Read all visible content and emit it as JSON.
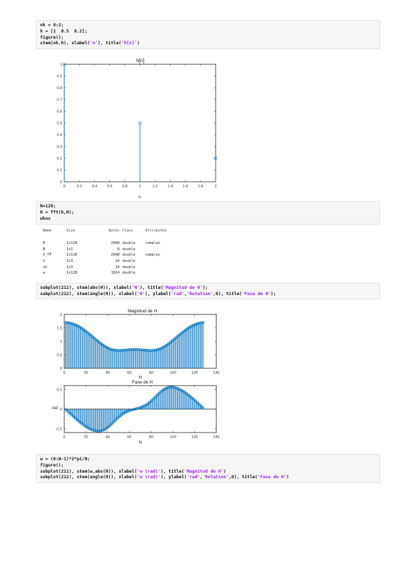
{
  "code_block_1": {
    "lines": [
      [
        {
          "t": "nh = 0:2;"
        }
      ],
      [
        {
          "t": "h = [1  0.5  0.2];"
        }
      ],
      [
        {
          "t": "figure();"
        }
      ],
      [
        {
          "t": "stem(nh,h), xlabel("
        },
        {
          "t": "'n'",
          "s": 1
        },
        {
          "t": "), title("
        },
        {
          "t": "'h[n]'",
          "s": 1
        },
        {
          "t": ")"
        }
      ]
    ]
  },
  "code_block_2": {
    "lines": [
      [
        {
          "t": "N=128;"
        }
      ],
      [
        {
          "t": "H = fft(h,N);"
        }
      ],
      [
        {
          "t": "whos"
        }
      ]
    ]
  },
  "code_block_3": {
    "lines": [
      [
        {
          "t": "subplot(211), stem(abs(H)), xlabel("
        },
        {
          "t": "'N'",
          "s": 1
        },
        {
          "t": "), title("
        },
        {
          "t": "'Magnitud de H'",
          "s": 1
        },
        {
          "t": ");"
        }
      ],
      [
        {
          "t": "subplot(212), stem(angle(H)), xlabel("
        },
        {
          "t": "'N'",
          "s": 1
        },
        {
          "t": "), ylabel("
        },
        {
          "t": "'rad'",
          "s": 1
        },
        {
          "t": ","
        },
        {
          "t": "'Rotation'",
          "s": 1
        },
        {
          "t": ",0), title("
        },
        {
          "t": "'Fase de H'",
          "s": 1
        },
        {
          "t": ");"
        }
      ]
    ]
  },
  "code_block_4": {
    "lines": [
      [
        {
          "t": "w = (0:N-1)*2*pi/N;"
        }
      ],
      [
        {
          "t": "figure();"
        }
      ],
      [
        {
          "t": "subplot(211), stem(w,abs(H)), xlabel("
        },
        {
          "t": "'w (rad)'",
          "s": 1
        },
        {
          "t": "), title("
        },
        {
          "t": "'Magnitud de H'",
          "s": 1
        },
        {
          "t": ")"
        }
      ],
      [
        {
          "t": "subplot(212), stem(angle(H)), xlabel("
        },
        {
          "t": "'w (rad)'",
          "s": 1
        },
        {
          "t": "), ylabel("
        },
        {
          "t": "'rad'",
          "s": 1
        },
        {
          "t": ","
        },
        {
          "t": "'Rotation'",
          "s": 1
        },
        {
          "t": ",0), title("
        },
        {
          "t": "'Fase de H'",
          "s": 1
        },
        {
          "t": ")"
        }
      ]
    ]
  },
  "whos": {
    "headers": [
      "Name",
      "Size",
      "Bytes",
      "Class",
      "Attributes"
    ],
    "rows": [
      [
        "H",
        "1x128",
        "2048",
        "double",
        "complex"
      ],
      [
        "N",
        "1x1",
        "8",
        "double",
        ""
      ],
      [
        "X_TF",
        "1x128",
        "2048",
        "double",
        "complex"
      ],
      [
        "h",
        "1x3",
        "24",
        "double",
        ""
      ],
      [
        "nh",
        "1x3",
        "24",
        "double",
        ""
      ],
      [
        "w",
        "1x128",
        "1024",
        "double",
        ""
      ]
    ]
  },
  "colors": {
    "stem": "#0072bd",
    "string": "#a020f0",
    "code_bg": "#f6f6f6"
  },
  "chart_data": [
    {
      "type": "scatter",
      "style": "stem",
      "title": "h[n]",
      "xlabel": "n",
      "ylabel": "",
      "x": [
        0,
        1,
        2
      ],
      "y": [
        1,
        0.5,
        0.2
      ],
      "xlim": [
        0,
        2
      ],
      "ylim": [
        0,
        1
      ],
      "xticks": [
        "0",
        "0.2",
        "0.4",
        "0.6",
        "0.8",
        "1",
        "1.2",
        "1.4",
        "1.6",
        "1.8",
        "2"
      ],
      "yticks": [
        "0",
        "0.1",
        "0.2",
        "0.3",
        "0.4",
        "0.5",
        "0.6",
        "0.7",
        "0.8",
        "0.9",
        "1"
      ],
      "grid": false
    },
    {
      "type": "scatter",
      "style": "stem",
      "title": "Magnitud de H",
      "xlabel": "N",
      "ylabel": "",
      "series_formula": "abs(H), H = fft([1 0.5 0.2], 128)",
      "n_points": 128,
      "x_start": 1,
      "xlim": [
        0,
        140
      ],
      "ylim": [
        0,
        2
      ],
      "xticks": [
        "0",
        "20",
        "40",
        "60",
        "80",
        "100",
        "120",
        "140"
      ],
      "yticks": [
        "0",
        "0.5",
        "1",
        "1.5",
        "2"
      ],
      "grid": false
    },
    {
      "type": "scatter",
      "style": "stem",
      "title": "Fase de H",
      "xlabel": "N",
      "ylabel": "rad",
      "series_formula": "angle(H), H = fft([1 0.5 0.2], 128)",
      "n_points": 128,
      "x_start": 1,
      "xlim": [
        0,
        140
      ],
      "ylim": [
        -0.6,
        0.6
      ],
      "xticks": [
        "0",
        "20",
        "40",
        "60",
        "80",
        "100",
        "120",
        "140"
      ],
      "yticks": [
        "-0.5",
        "0",
        "0.5"
      ],
      "grid": false
    }
  ]
}
